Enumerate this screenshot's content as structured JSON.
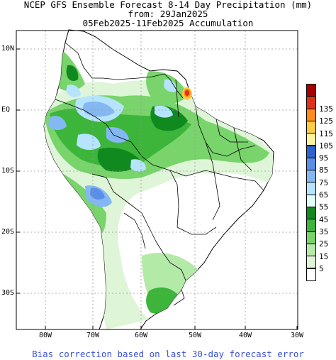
{
  "title": {
    "line1": "NCEP GFS Ensemble Forecast 8-14 Day Precipitation (mm)",
    "line2": "from: 29Jan2025",
    "line3": "05Feb2025-11Feb2025 Accumulation"
  },
  "lat_labels": [
    "10N",
    "EQ",
    "10S",
    "20S",
    "30S"
  ],
  "lon_labels": [
    "80W",
    "70W",
    "60W",
    "50W",
    "40W",
    "30W"
  ],
  "legend": {
    "levels": [
      "5",
      "15",
      "25",
      "35",
      "45",
      "55",
      "65",
      "75",
      "85",
      "95",
      "105",
      "115",
      "125",
      "135"
    ],
    "colors": [
      "#ffffff",
      "#dff5d8",
      "#b4eaa8",
      "#78d46b",
      "#3cb53a",
      "#108a1e",
      "#e2fff8",
      "#b6e4ff",
      "#84b8f3",
      "#5a8ee8",
      "#2c63d2",
      "#fff3a0",
      "#ffcc44",
      "#ff8d1a",
      "#e0301a",
      "#a80000"
    ]
  },
  "footer": "Bias correction based on last 30-day forecast error",
  "colors": {
    "ocean": "#ffffff",
    "land_base": "#ffffff",
    "border": "#000000",
    "grid": "#999999",
    "footer_text": "#3a50d8"
  }
}
